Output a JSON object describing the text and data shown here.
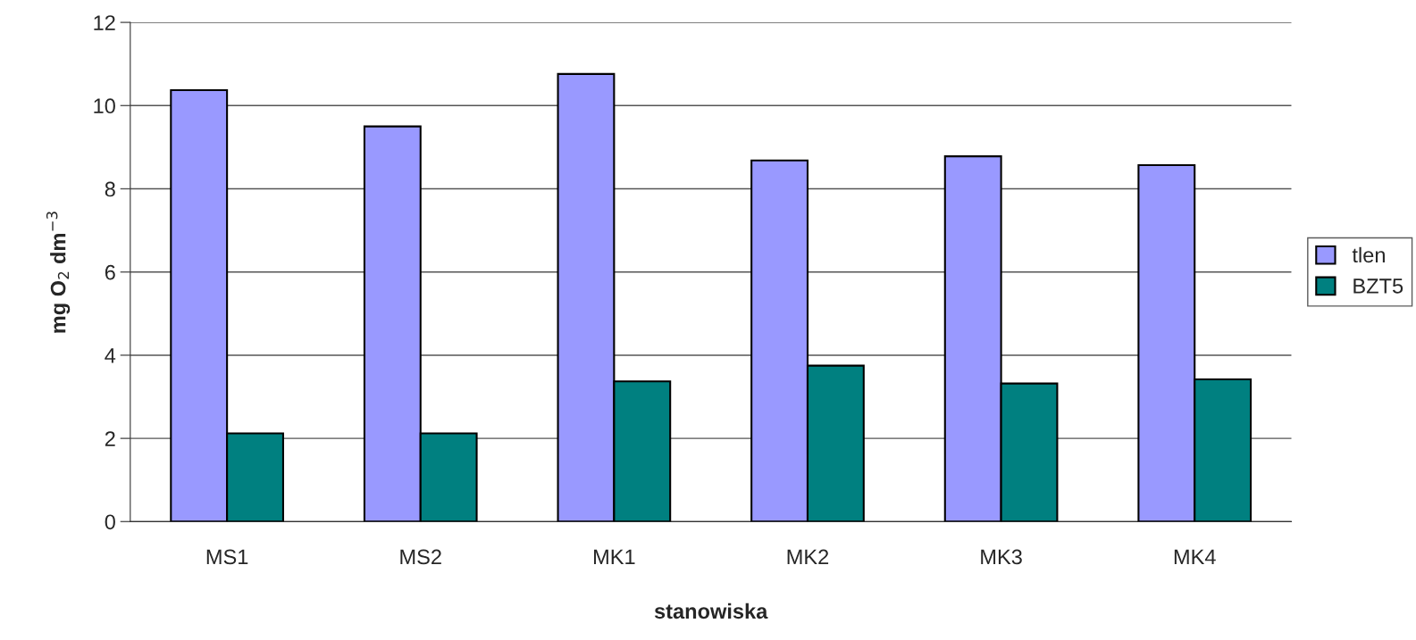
{
  "chart_data": {
    "type": "bar",
    "xlabel": "stanowiska",
    "ylabel": "mg O$_{2}$ dm$^{−3}$",
    "categories": [
      "MS1",
      "MS2",
      "MK1",
      "MK2",
      "MK3",
      "MK4"
    ],
    "series": [
      {
        "name": "tlen",
        "color": "#9999ff",
        "values": [
          10.37,
          9.5,
          10.76,
          8.68,
          8.78,
          8.57
        ]
      },
      {
        "name": "BZT5",
        "color": "#008080",
        "values": [
          2.12,
          2.12,
          3.37,
          3.75,
          3.32,
          3.42
        ]
      }
    ],
    "ylim": [
      0,
      12
    ],
    "yticks": [
      0,
      2,
      4,
      6,
      8,
      10,
      12
    ],
    "grid": "y",
    "legend": "right"
  }
}
